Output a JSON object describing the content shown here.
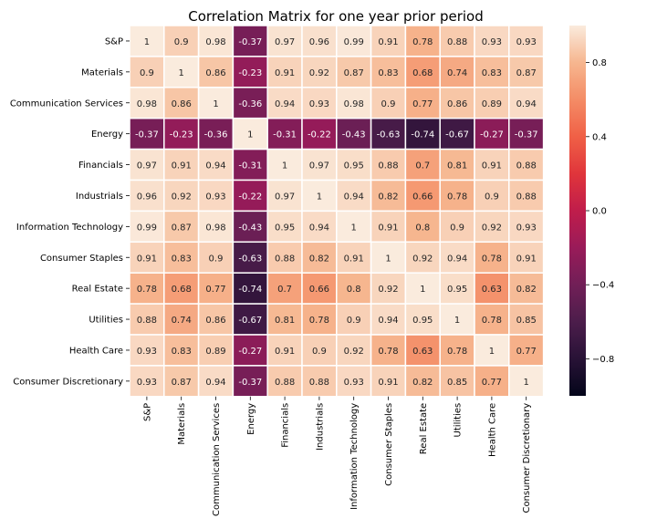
{
  "chart_data": {
    "type": "heatmap",
    "title": "Correlation Matrix for one year prior period",
    "xlabel": "",
    "ylabel": "",
    "labels": [
      "S&P",
      "Materials",
      "Communication Services",
      "Energy",
      "Financials",
      "Industrials",
      "Information Technology",
      "Consumer Staples",
      "Real Estate",
      "Utilities",
      "Health Care",
      "Consumer Discretionary"
    ],
    "matrix": [
      [
        1,
        0.9,
        0.98,
        -0.37,
        0.97,
        0.96,
        0.99,
        0.91,
        0.78,
        0.88,
        0.93,
        0.93
      ],
      [
        0.9,
        1,
        0.86,
        -0.23,
        0.91,
        0.92,
        0.87,
        0.83,
        0.68,
        0.74,
        0.83,
        0.87
      ],
      [
        0.98,
        0.86,
        1,
        -0.36,
        0.94,
        0.93,
        0.98,
        0.9,
        0.77,
        0.86,
        0.89,
        0.94
      ],
      [
        -0.37,
        -0.23,
        -0.36,
        1,
        -0.31,
        -0.22,
        -0.43,
        -0.63,
        -0.74,
        -0.67,
        -0.27,
        -0.37
      ],
      [
        0.97,
        0.91,
        0.94,
        -0.31,
        1,
        0.97,
        0.95,
        0.88,
        0.7,
        0.81,
        0.91,
        0.88
      ],
      [
        0.96,
        0.92,
        0.93,
        -0.22,
        0.97,
        1,
        0.94,
        0.82,
        0.66,
        0.78,
        0.9,
        0.88
      ],
      [
        0.99,
        0.87,
        0.98,
        -0.43,
        0.95,
        0.94,
        1,
        0.91,
        0.8,
        0.9,
        0.92,
        0.93
      ],
      [
        0.91,
        0.83,
        0.9,
        -0.63,
        0.88,
        0.82,
        0.91,
        1,
        0.92,
        0.94,
        0.78,
        0.91
      ],
      [
        0.78,
        0.68,
        0.77,
        -0.74,
        0.7,
        0.66,
        0.8,
        0.92,
        1,
        0.95,
        0.63,
        0.82
      ],
      [
        0.88,
        0.74,
        0.86,
        -0.67,
        0.81,
        0.78,
        0.9,
        0.94,
        0.95,
        1,
        0.78,
        0.85
      ],
      [
        0.93,
        0.83,
        0.89,
        -0.27,
        0.91,
        0.9,
        0.92,
        0.78,
        0.63,
        0.78,
        1,
        0.77
      ],
      [
        0.93,
        0.87,
        0.94,
        -0.37,
        0.88,
        0.88,
        0.93,
        0.91,
        0.82,
        0.85,
        0.77,
        1
      ]
    ],
    "colorbar": {
      "range": [
        -1,
        1
      ],
      "ticks": [
        -0.8,
        -0.4,
        0.0,
        0.4,
        0.8
      ],
      "tick_labels": [
        "−0.8",
        "−0.4",
        "0.0",
        "0.4",
        "0.8"
      ]
    },
    "colormap": "rocket",
    "grid": false
  }
}
